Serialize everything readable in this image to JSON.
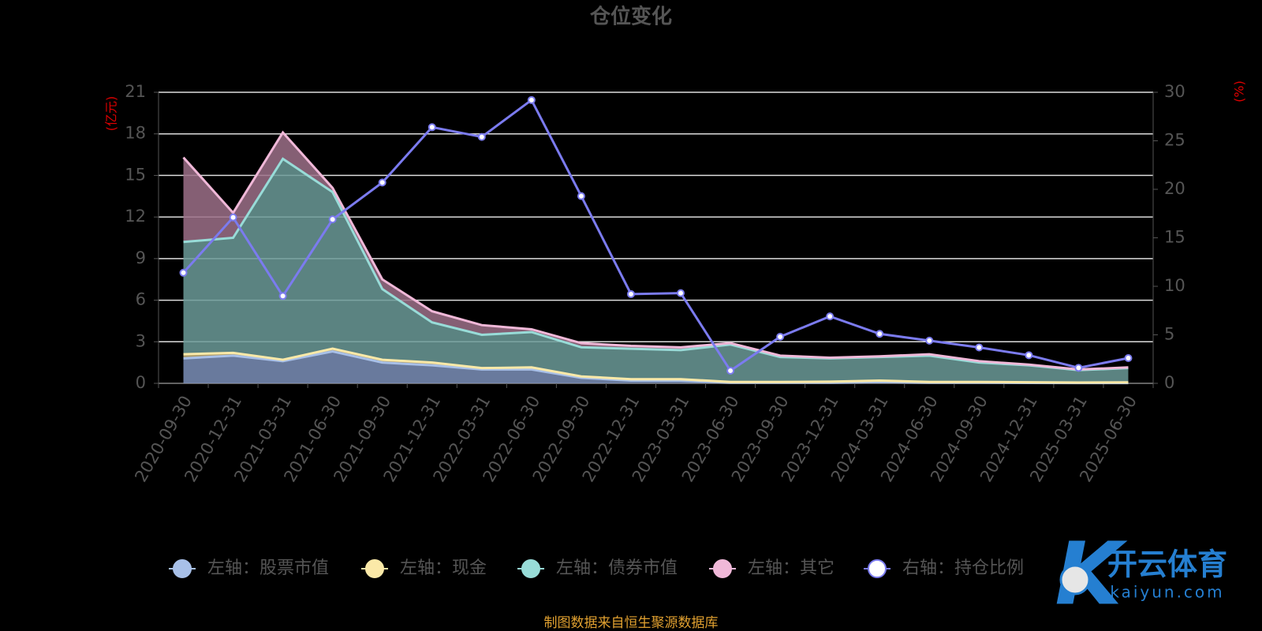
{
  "chart_data": {
    "type": "area",
    "stacked": true,
    "title": "仓位变化",
    "y_label": "(亿元)",
    "y2_label": "(%)",
    "source": "制图数据来自恒生聚源数据库",
    "watermark": {
      "text": "开云体育",
      "url": "kaiyun.com"
    },
    "categories": [
      "2020-09-30",
      "2020-12-31",
      "2021-03-31",
      "2021-06-30",
      "2021-09-30",
      "2021-12-31",
      "2022-03-31",
      "2022-06-30",
      "2022-09-30",
      "2022-12-31",
      "2023-03-31",
      "2023-06-30",
      "2023-09-30",
      "2023-12-31",
      "2024-03-31",
      "2024-06-30",
      "2024-09-30",
      "2024-12-31",
      "2025-03-31",
      "2025-06-30"
    ],
    "ylim": [
      0,
      21
    ],
    "yticks": [
      0,
      3,
      6,
      9,
      12,
      15,
      18,
      21
    ],
    "y2lim": [
      0,
      30
    ],
    "y2ticks": [
      0,
      5,
      10,
      15,
      20,
      25,
      30
    ],
    "grid": true,
    "legend": "bottom",
    "series": [
      {
        "name": "左轴：股票市值",
        "color": "#a8c0e8",
        "fill": "#7b8fb8",
        "values": [
          1.8,
          2.0,
          1.6,
          2.3,
          1.5,
          1.3,
          1.0,
          1.0,
          0.4,
          0.2,
          0.2,
          0.05,
          0.05,
          0.05,
          0.1,
          0.05,
          0.05,
          0.03,
          0.02,
          0.02
        ]
      },
      {
        "name": "左轴：现金",
        "color": "#fbe9a8",
        "fill": "#c9b57a",
        "values": [
          0.3,
          0.2,
          0.1,
          0.2,
          0.2,
          0.2,
          0.1,
          0.15,
          0.1,
          0.1,
          0.1,
          0.05,
          0.05,
          0.07,
          0.1,
          0.05,
          0.05,
          0.05,
          0.04,
          0.05
        ]
      },
      {
        "name": "左轴：债券市值",
        "color": "#98dcd8",
        "fill": "#6b9a98",
        "values": [
          8.1,
          8.3,
          14.5,
          11.3,
          5.1,
          2.9,
          2.4,
          2.55,
          2.1,
          2.2,
          2.1,
          2.7,
          1.8,
          1.68,
          1.7,
          1.9,
          1.4,
          1.22,
          0.89,
          1.03
        ]
      },
      {
        "name": "左轴：其它",
        "color": "#f0b8d8",
        "fill": "#9c7088",
        "values": [
          6.1,
          1.8,
          1.9,
          0.3,
          0.7,
          0.8,
          0.7,
          0.2,
          0.3,
          0.2,
          0.2,
          0.1,
          0.1,
          0.05,
          0.05,
          0.1,
          0.1,
          0.05,
          0.05,
          0.05
        ]
      },
      {
        "name": "右轴：持仓比例",
        "color": "#7b7bef",
        "type": "line",
        "axis": "y2",
        "values": [
          11.4,
          17.1,
          9.0,
          16.9,
          20.7,
          26.4,
          25.4,
          29.2,
          19.3,
          9.2,
          9.3,
          1.3,
          4.8,
          6.9,
          5.1,
          4.4,
          3.7,
          2.9,
          1.6,
          2.6
        ]
      }
    ]
  }
}
